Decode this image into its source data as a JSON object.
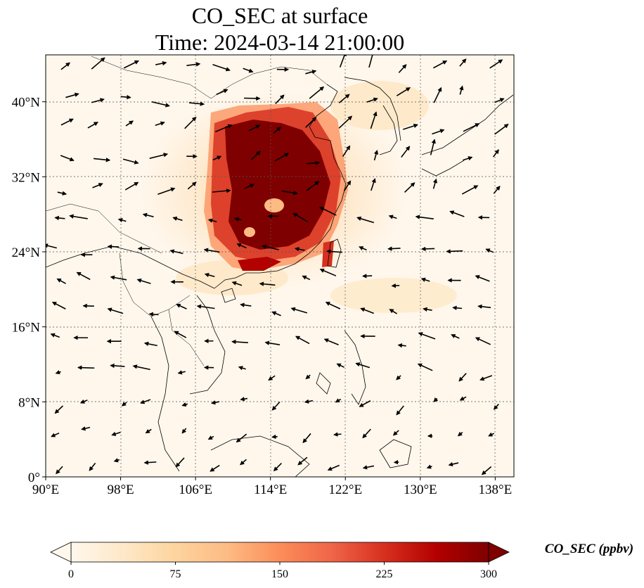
{
  "map": {
    "title_line1": "CO_SEC at surface",
    "title_line2": "Time: 2024-03-14 21:00:00",
    "extent": {
      "lon": [
        90,
        140
      ],
      "lat": [
        0,
        45
      ]
    },
    "lon_ticks": [
      {
        "value": 90,
        "label": "90°E"
      },
      {
        "value": 98,
        "label": "98°E"
      },
      {
        "value": 106,
        "label": "106°E"
      },
      {
        "value": 114,
        "label": "114°E"
      },
      {
        "value": 122,
        "label": "122°E"
      },
      {
        "value": 130,
        "label": "130°E"
      },
      {
        "value": 138,
        "label": "138°E"
      }
    ],
    "lat_ticks": [
      {
        "value": 0,
        "label": "0°"
      },
      {
        "value": 8,
        "label": "8°N"
      },
      {
        "value": 16,
        "label": "16°N"
      },
      {
        "value": 24,
        "label": "24°N"
      },
      {
        "value": 32,
        "label": "32°N"
      },
      {
        "value": 40,
        "label": "40°N"
      }
    ],
    "gridlines": true,
    "colormap": [
      "#fff7ec",
      "#fee8c8",
      "#fdd49e",
      "#fdbb84",
      "#fc8d59",
      "#ef6548",
      "#d7301f",
      "#b30000",
      "#7f0000"
    ],
    "plume_color": "#7f0000"
  },
  "colorbar": {
    "label": "CO_SEC (ppbv)",
    "range": [
      0,
      300
    ],
    "extend": "both",
    "ticks": [
      {
        "value": 0,
        "label": "0"
      },
      {
        "value": 75,
        "label": "75"
      },
      {
        "value": 150,
        "label": "150"
      },
      {
        "value": 225,
        "label": "225"
      },
      {
        "value": 300,
        "label": "300"
      }
    ]
  }
}
